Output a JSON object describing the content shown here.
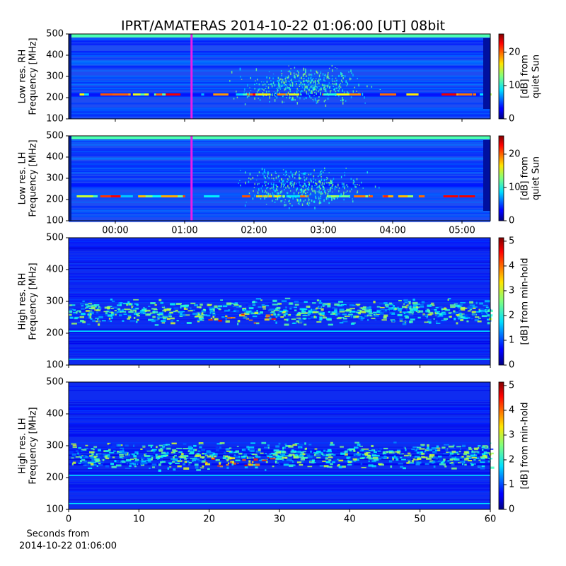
{
  "title": "IPRT/AMATERAS 2014-10-22 01:06:00 [UT]   08bit",
  "chart_data": [
    {
      "type": "spectrogram",
      "ylabel": [
        "Low res. RH",
        "Frequency [MHz]"
      ],
      "ylim": [
        100,
        500
      ],
      "yticks": [
        100,
        200,
        300,
        400,
        500
      ],
      "xlim": [
        -0.673,
        5.408
      ],
      "xticks": [
        0,
        1,
        2,
        3,
        4,
        5
      ],
      "xticklabels": false,
      "marker": {
        "x": 1.1,
        "color": "#e81ee8"
      },
      "colorbar": {
        "lim": [
          0,
          25.5
        ],
        "ticks": [
          0,
          10,
          20
        ],
        "label": [
          "[dB] from",
          "quiet Sun"
        ]
      }
    },
    {
      "type": "spectrogram",
      "ylabel": [
        "Low res. LH",
        "Frequency [MHz]"
      ],
      "ylim": [
        100,
        500
      ],
      "yticks": [
        100,
        200,
        300,
        400,
        500
      ],
      "xlim": [
        -0.673,
        5.408
      ],
      "xticks": [
        {
          "value": 0,
          "label": "00:00"
        },
        {
          "value": 1,
          "label": "01:00"
        },
        {
          "value": 2,
          "label": "02:00"
        },
        {
          "value": 3,
          "label": "03:00"
        },
        {
          "value": 4,
          "label": "04:00"
        },
        {
          "value": 5,
          "label": "05:00"
        }
      ],
      "marker": {
        "x": 1.1,
        "color": "#e81ee8"
      },
      "colorbar": {
        "lim": [
          0,
          25.5
        ],
        "ticks": [
          0,
          10,
          20
        ],
        "label": [
          "[dB] from",
          "quiet Sun"
        ]
      }
    },
    {
      "type": "spectrogram",
      "ylabel": [
        "High res. RH",
        "Frequency [MHz]"
      ],
      "ylim": [
        100,
        500
      ],
      "yticks": [
        100,
        200,
        300,
        400,
        500
      ],
      "xlim": [
        0,
        60
      ],
      "xticks": [
        0,
        10,
        20,
        30,
        40,
        50,
        60
      ],
      "xticklabels": false,
      "colorbar": {
        "lim": [
          0,
          5.14
        ],
        "ticks": [
          0,
          1,
          2,
          3,
          4,
          5
        ],
        "label": [
          "[dB] from min-hold"
        ]
      }
    },
    {
      "type": "spectrogram",
      "ylabel": [
        "High res. LH",
        "Frequency [MHz]"
      ],
      "ylim": [
        100,
        500
      ],
      "yticks": [
        100,
        200,
        300,
        400,
        500
      ],
      "xlim": [
        0,
        60
      ],
      "xticks": [
        0,
        10,
        20,
        30,
        40,
        50,
        60
      ],
      "xlabel": [
        "Seconds from",
        "2014-10-22 01:06:00"
      ],
      "colorbar": {
        "lim": [
          0,
          5.14
        ],
        "ticks": [
          0,
          1,
          2,
          3,
          4,
          5
        ],
        "label": [
          "[dB] from min-hold"
        ]
      }
    }
  ]
}
